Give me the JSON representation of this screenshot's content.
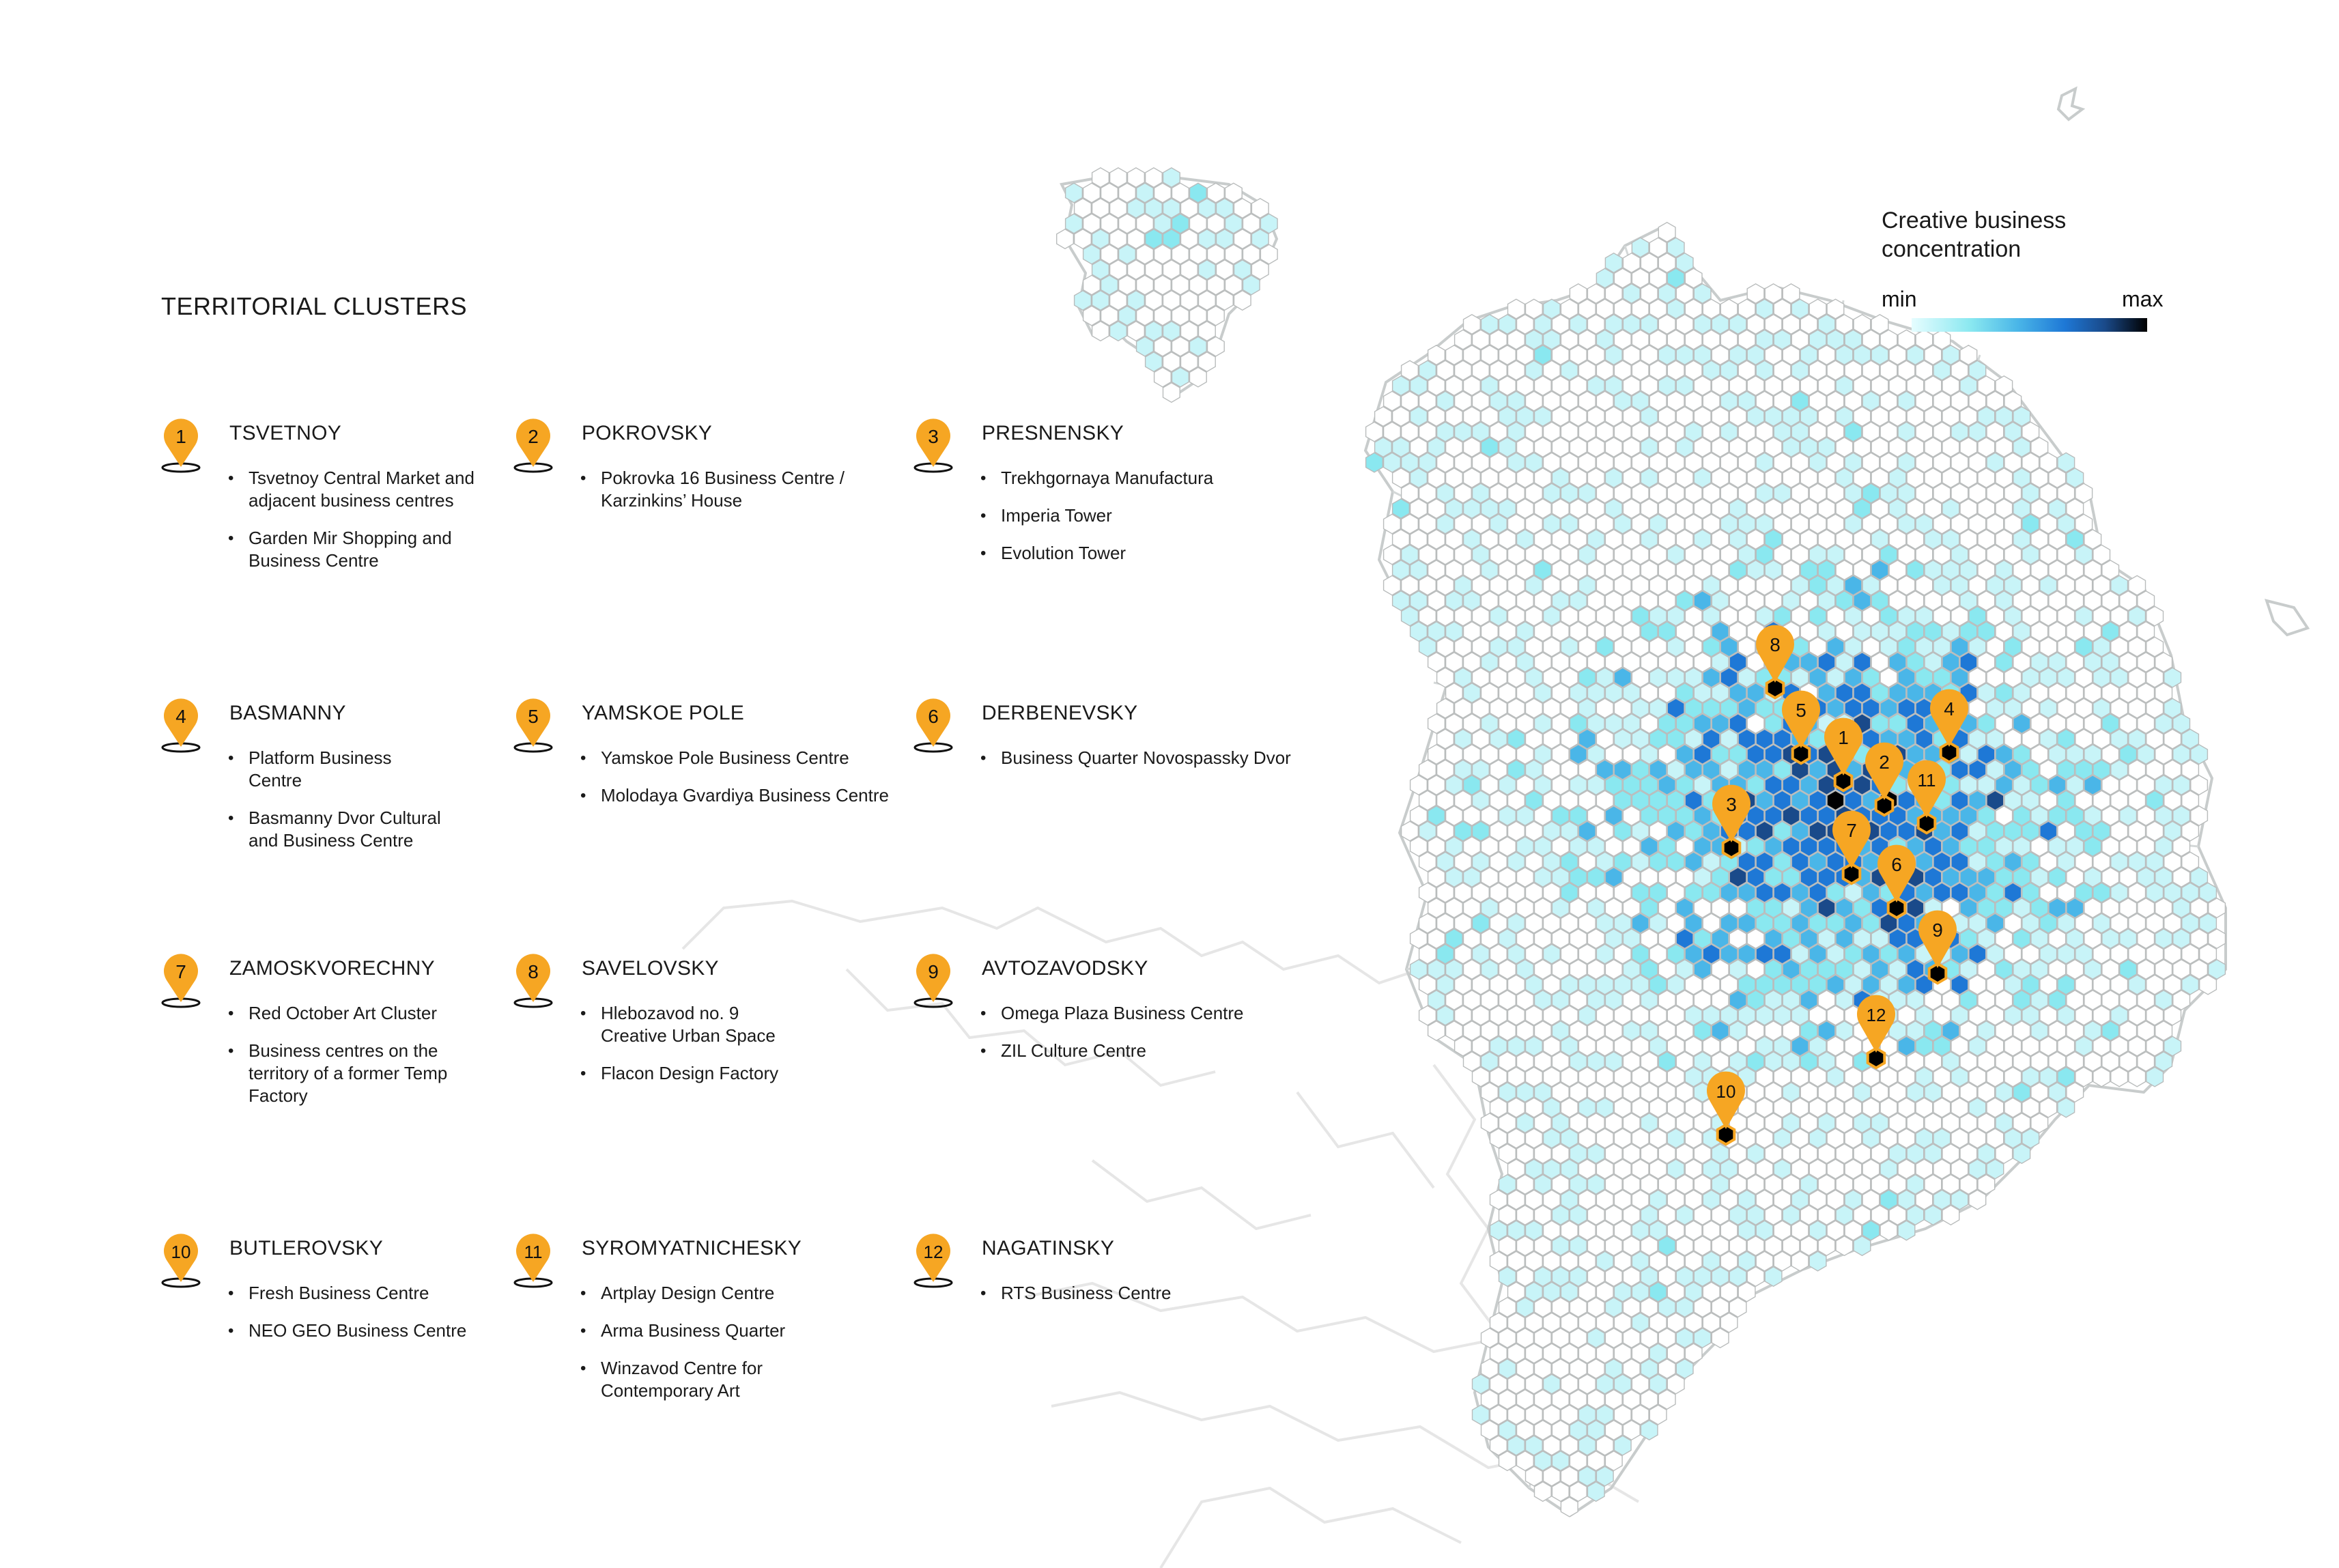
{
  "panel": {
    "title": "TERRITORIAL CLUSTERS"
  },
  "clusters": [
    {
      "num": "1",
      "name": "TSVETNOY",
      "items": [
        "Tsvetnoy Central Market and adjacent business centres",
        "Garden Mir Shopping and Business Centre"
      ]
    },
    {
      "num": "2",
      "name": "POKROVSKY",
      "items": [
        "Pokrovka 16 Business Centre / Karzinkins’ House"
      ]
    },
    {
      "num": "3",
      "name": "PRESNENSKY",
      "items": [
        "Trekhgornaya Manufactura",
        "Imperia Tower",
        "Evolution Tower"
      ]
    },
    {
      "num": "4",
      "name": "BASMANNY",
      "items": [
        "Platform Business Centre",
        "Basmanny Dvor Cultural and Business Centre"
      ]
    },
    {
      "num": "5",
      "name": "YAMSKOE POLE",
      "items": [
        "Yamskoe Pole Business Centre",
        "Molodaya Gvardiya Business Centre"
      ]
    },
    {
      "num": "6",
      "name": "DERBENEVSKY",
      "items": [
        "Business Quarter Novospassky Dvor"
      ]
    },
    {
      "num": "7",
      "name": "ZAMOSKVORECHNY",
      "items": [
        "Red October Art Cluster",
        "Business centres on the territory of a former Temp Factory"
      ]
    },
    {
      "num": "8",
      "name": "SAVELOVSKY",
      "items": [
        "Hlebozavod no. 9 Creative Urban Space",
        "Flacon Design Factory"
      ]
    },
    {
      "num": "9",
      "name": "AVTOZAVODSKY",
      "items": [
        "Omega Plaza Business Centre",
        "ZIL Culture Centre"
      ]
    },
    {
      "num": "10",
      "name": "BUTLEROVSKY",
      "items": [
        "Fresh Business Centre",
        "NEO GEO Business Centre"
      ]
    },
    {
      "num": "11",
      "name": "SYROMYATNICHESKY",
      "items": [
        "Artplay Design Centre",
        "Arma Business Quarter",
        "Winzavod Centre for Contemporary Art"
      ]
    },
    {
      "num": "12",
      "name": "NAGATINSKY",
      "items": [
        "RTS Business Centre"
      ]
    }
  ],
  "legend": {
    "title": "Creative business concentration",
    "min": "min",
    "max": "max"
  },
  "colors": {
    "accent": "#f6a623",
    "scale": [
      "#ffffff",
      "#c8f4f8",
      "#8ae8f0",
      "#4ab6e8",
      "#1e78d6",
      "#1a4a8a",
      "#000000"
    ]
  },
  "markers": [
    "8",
    "5",
    "1",
    "4",
    "2",
    "11",
    "3",
    "7",
    "6",
    "9",
    "12",
    "10"
  ]
}
